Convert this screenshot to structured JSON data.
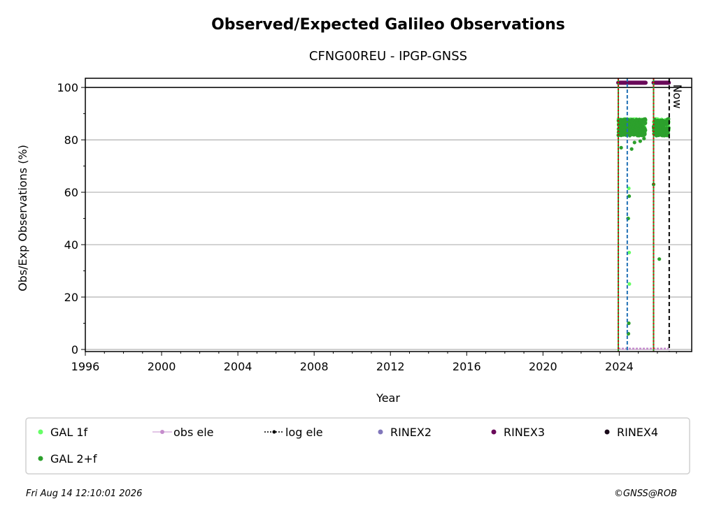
{
  "chart_data": {
    "type": "scatter",
    "title": "Observed/Expected Galileo Observations",
    "subtitle": "CFNG00REU - IPGP-GNSS",
    "xlabel": "Year",
    "ylabel": "Obs/Exp Observations (%)",
    "xlim": [
      1996,
      2027.8
    ],
    "ylim": [
      -0.8,
      103.5
    ],
    "x_ticks": [
      "1996",
      "2000",
      "2004",
      "2008",
      "2012",
      "2016",
      "2020",
      "2024"
    ],
    "y_ticks": [
      "0",
      "20",
      "40",
      "60",
      "80",
      "100"
    ],
    "grid": "y",
    "reference_line_y": 100,
    "now_label": "Now",
    "now_x": 2026.62,
    "vlines": [
      {
        "x": 2023.95,
        "style": "red-green-dotted"
      },
      {
        "x": 2024.42,
        "style": "blue-dashed"
      },
      {
        "x": 2025.8,
        "style": "red-green-dotted"
      },
      {
        "x": 2026.62,
        "style": "black-dashed"
      }
    ],
    "series": [
      {
        "name": "GAL 1f",
        "color": "#66ff66",
        "clusters": [
          {
            "x_start": 2023.95,
            "x_end": 2025.38,
            "y_min": 81,
            "y_max": 88
          },
          {
            "x_start": 2025.8,
            "x_end": 2026.6,
            "y_min": 81,
            "y_max": 88
          }
        ],
        "outliers": [
          [
            2024.5,
            61.5
          ],
          [
            2024.52,
            37
          ],
          [
            2024.53,
            25
          ],
          [
            2024.48,
            50
          ]
        ]
      },
      {
        "name": "GAL 2+f",
        "color": "#2ca02c",
        "clusters": [
          {
            "x_start": 2023.95,
            "x_end": 2025.38,
            "y_min": 80,
            "y_max": 88
          },
          {
            "x_start": 2025.8,
            "x_end": 2026.6,
            "y_min": 80,
            "y_max": 88
          }
        ],
        "outliers": [
          [
            2024.1,
            77
          ],
          [
            2024.52,
            58.5
          ],
          [
            2024.46,
            50
          ],
          [
            2024.5,
            10
          ],
          [
            2024.48,
            6
          ],
          [
            2024.65,
            76.5
          ],
          [
            2025.8,
            63
          ],
          [
            2026.1,
            34.5
          ],
          [
            2024.8,
            79
          ],
          [
            2025.1,
            79.5
          ],
          [
            2025.3,
            80.5
          ]
        ]
      },
      {
        "name": "RINEX3",
        "color": "#6a0a5a",
        "segments": [
          {
            "x_start": 2023.95,
            "x_end": 2025.38,
            "y": 101.8
          },
          {
            "x_start": 2025.8,
            "x_end": 2026.6,
            "y": 101.8
          }
        ]
      },
      {
        "name": "obs ele",
        "color": "#c58ccc",
        "segments": [
          {
            "x_start": 2023.95,
            "x_end": 2026.6,
            "y": 0
          }
        ]
      },
      {
        "name": "log ele",
        "color": "#000000"
      },
      {
        "name": "RINEX2",
        "color": "#8177bb"
      },
      {
        "name": "RINEX4",
        "color": "#1a0a1a"
      }
    ],
    "legend": {
      "placement": "bottom",
      "entries": [
        {
          "label": "GAL 1f",
          "marker": "dot",
          "color": "#66ff66"
        },
        {
          "label": "obs ele",
          "marker": "line-dot",
          "color": "#c58ccc"
        },
        {
          "label": "log ele",
          "marker": "dotted-line-dot",
          "color": "#000000"
        },
        {
          "label": "RINEX2",
          "marker": "dot",
          "color": "#8177bb"
        },
        {
          "label": "RINEX3",
          "marker": "dot",
          "color": "#6a0a5a"
        },
        {
          "label": "RINEX4",
          "marker": "dot",
          "color": "#1a0a1a"
        },
        {
          "label": "GAL 2+f",
          "marker": "dot",
          "color": "#2ca02c"
        }
      ]
    }
  },
  "footer": {
    "timestamp": "Fri Aug 14 12:10:01 2026",
    "credit": "©GNSS@ROB"
  }
}
